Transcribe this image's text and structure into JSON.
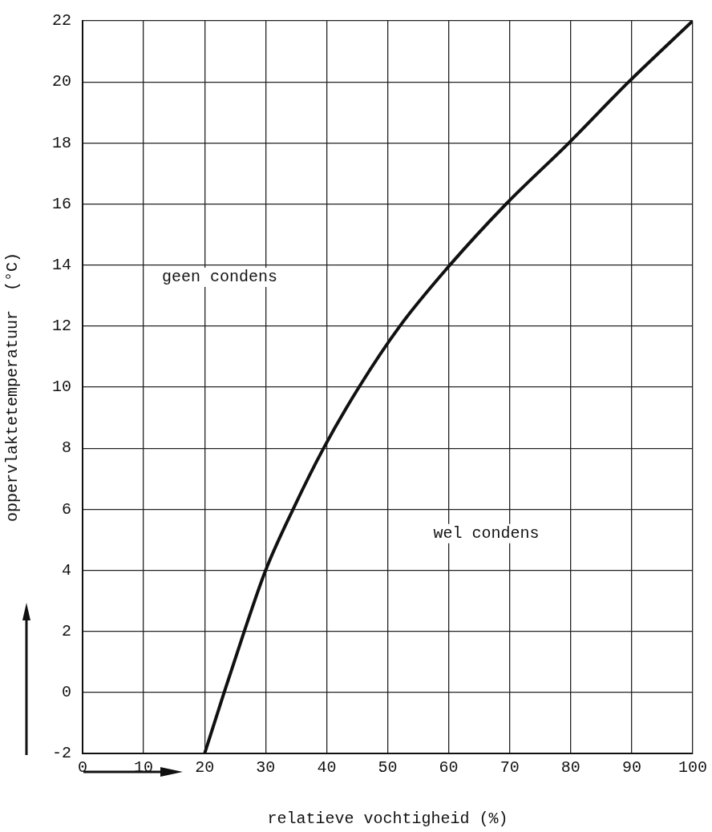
{
  "chart_data": {
    "type": "line",
    "xlabel": "relatieve vochtigheid (%)",
    "ylabel": "oppervlaktetemperatuur  (°C)",
    "x": [
      20,
      23.2,
      26.5,
      30,
      34.5,
      39.5,
      45.3,
      52,
      60.2,
      69.4,
      79.7,
      89.5,
      100
    ],
    "series": [
      {
        "color": "#111111",
        "values": [
          -2,
          0,
          2,
          4,
          6,
          8,
          10,
          12,
          14,
          16,
          18,
          20,
          22
        ]
      }
    ],
    "xlim": [
      0,
      100
    ],
    "xticks": [
      0,
      10,
      20,
      30,
      40,
      50,
      60,
      70,
      80,
      90,
      100
    ],
    "ylim": [
      -2,
      22
    ],
    "yticks": [
      -2,
      0,
      2,
      4,
      6,
      8,
      10,
      12,
      14,
      16,
      18,
      20,
      22
    ],
    "grid": true,
    "legend": false,
    "marker": "none",
    "line_style": "solid",
    "annotations": [
      "geen condens",
      "wel condens"
    ]
  }
}
